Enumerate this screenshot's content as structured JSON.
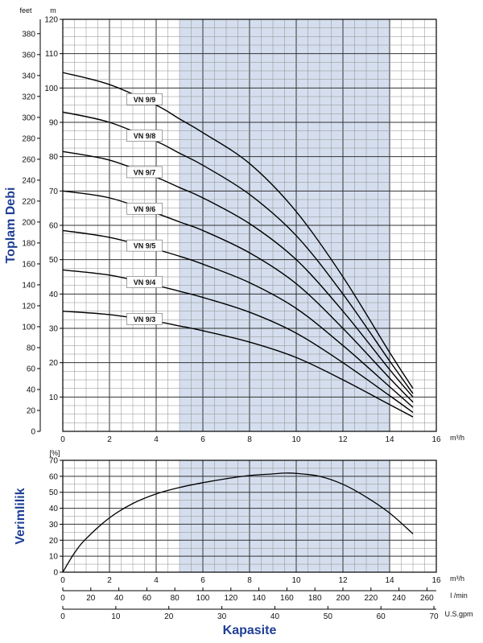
{
  "chart_data": [
    {
      "type": "line",
      "ylabel": "Toplam Debi",
      "y_unit_left": "feet",
      "y_unit_right": "m",
      "x_unit": "m³/h",
      "xlim": [
        0,
        16
      ],
      "ylim_m": [
        0,
        120
      ],
      "ylim_feet": [
        0,
        393.7
      ],
      "x_ticks": [
        0,
        2,
        4,
        6,
        8,
        10,
        12,
        14,
        16
      ],
      "y_ticks_m": [
        10,
        20,
        30,
        40,
        50,
        60,
        70,
        80,
        90,
        100,
        110,
        120
      ],
      "y_ticks_feet": [
        0,
        20,
        40,
        60,
        80,
        100,
        120,
        140,
        160,
        180,
        200,
        220,
        240,
        260,
        280,
        300,
        320,
        340,
        360,
        380
      ],
      "highlight_band_x": [
        5,
        14
      ],
      "grid": true,
      "series": [
        {
          "name": "VN 9/9",
          "x": [
            0,
            2,
            4,
            5,
            6,
            8,
            10,
            12,
            14,
            15
          ],
          "y": [
            104.5,
            101,
            95,
            91,
            87,
            78,
            64,
            45,
            23,
            12.5
          ]
        },
        {
          "name": "VN 9/8",
          "x": [
            0,
            2,
            4,
            5,
            6,
            8,
            10,
            12,
            14,
            15
          ],
          "y": [
            93,
            90,
            84.5,
            81,
            77.5,
            69,
            57,
            40,
            20.5,
            11
          ]
        },
        {
          "name": "VN 9/7",
          "x": [
            0,
            2,
            4,
            5,
            6,
            8,
            10,
            12,
            14,
            15
          ],
          "y": [
            81.5,
            79,
            74,
            71,
            68,
            60.5,
            50,
            35,
            18,
            10
          ]
        },
        {
          "name": "VN 9/6",
          "x": [
            0,
            2,
            4,
            5,
            6,
            8,
            10,
            12,
            14,
            15
          ],
          "y": [
            70,
            68,
            63.5,
            61,
            58.5,
            52,
            43,
            30,
            15.5,
            8.5
          ]
        },
        {
          "name": "VN 9/5",
          "x": [
            0,
            2,
            4,
            5,
            6,
            8,
            10,
            12,
            14,
            15
          ],
          "y": [
            58.5,
            56.5,
            53,
            51,
            48.7,
            43.3,
            35.8,
            25,
            13,
            7
          ]
        },
        {
          "name": "VN 9/4",
          "x": [
            0,
            2,
            4,
            5,
            6,
            8,
            10,
            12,
            14,
            15
          ],
          "y": [
            47,
            45.5,
            42.5,
            40.8,
            39,
            34.7,
            28.6,
            20,
            10.4,
            5.5
          ]
        },
        {
          "name": "VN 9/3",
          "x": [
            0,
            2,
            4,
            5,
            6,
            8,
            10,
            12,
            14,
            15
          ],
          "y": [
            35,
            34,
            32,
            30.7,
            29.3,
            26,
            21.5,
            15,
            7.8,
            4.2
          ]
        }
      ]
    },
    {
      "type": "line",
      "ylabel": "Verimlilik",
      "y_unit": "[%]",
      "x_unit": "m³/h",
      "xlim": [
        0,
        16
      ],
      "ylim": [
        0,
        70
      ],
      "x_ticks": [
        0,
        2,
        4,
        6,
        8,
        10,
        12,
        14,
        16
      ],
      "y_ticks": [
        0,
        10,
        20,
        30,
        40,
        50,
        60,
        70
      ],
      "highlight_band_x": [
        5,
        14
      ],
      "grid": true,
      "series": [
        {
          "x": [
            0,
            0.5,
            1,
            2,
            3,
            4,
            5,
            6,
            7,
            8,
            9,
            9.5,
            10,
            11,
            12,
            13,
            14,
            15
          ],
          "y": [
            0,
            12,
            21,
            34,
            43,
            49,
            53,
            56,
            58.5,
            60.5,
            61.5,
            62,
            61.8,
            60,
            55,
            47,
            37,
            24
          ]
        }
      ]
    }
  ],
  "secondary_axes": [
    {
      "unit": "l /min",
      "ticks": [
        "0",
        "20",
        "40",
        "60",
        "80",
        "100",
        "120",
        "140",
        "160",
        "180",
        "200",
        "220",
        "240",
        "260"
      ]
    },
    {
      "unit": "U.S.gpm",
      "ticks": [
        "0",
        "10",
        "20",
        "30",
        "40",
        "50",
        "60",
        "70"
      ]
    }
  ],
  "xlabel": "Kapasite",
  "colors": {
    "band": "#d4deee",
    "axis_text": "#111111",
    "title_blue": "#1f3f94",
    "grid": "#8e8e8e",
    "curve": "#000000"
  }
}
